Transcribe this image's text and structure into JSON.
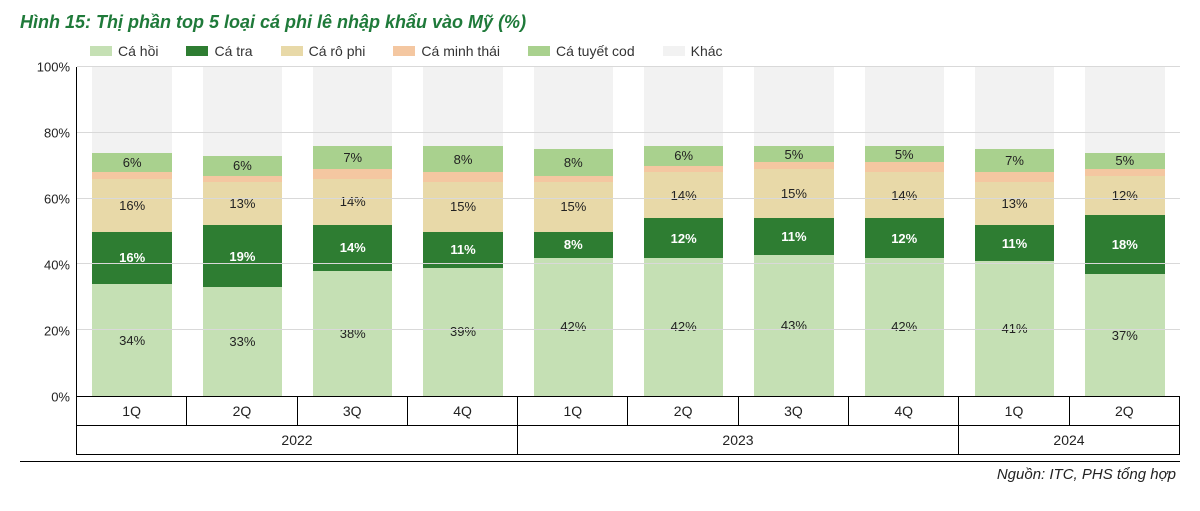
{
  "title": "Hình 15: Thị phần top 5 loại cá phi lê nhập khẩu vào Mỹ (%)",
  "source": "Nguồn: ITC, PHS tổng hợp",
  "chart": {
    "type": "stacked-bar",
    "ylim": [
      0,
      100
    ],
    "ytick_step": 20,
    "y_suffix": "%",
    "grid_color": "#d9d9d9",
    "background_color": "#ffffff",
    "series": [
      {
        "key": "ca_hoi",
        "label": "Cá hồi",
        "color": "#c5e0b4"
      },
      {
        "key": "ca_tra",
        "label": "Cá tra",
        "color": "#2e7d32"
      },
      {
        "key": "ca_ro_phi",
        "label": "Cá rô phi",
        "color": "#e8d9a8"
      },
      {
        "key": "ca_minh_thai",
        "label": "Cá minh thái",
        "color": "#f4c7a1"
      },
      {
        "key": "ca_tuyet_cod",
        "label": "Cá tuyết cod",
        "color": "#a9d18e"
      },
      {
        "key": "khac",
        "label": "Khác",
        "color": "#f2f2f2"
      }
    ],
    "year_groups": [
      {
        "label": "2022",
        "count": 4
      },
      {
        "label": "2023",
        "count": 4
      },
      {
        "label": "2024",
        "count": 2
      }
    ],
    "quarters": [
      "1Q",
      "2Q",
      "3Q",
      "4Q",
      "1Q",
      "2Q",
      "3Q",
      "4Q",
      "1Q",
      "2Q"
    ],
    "data": [
      {
        "ca_hoi": 34,
        "ca_tra": 16,
        "ca_ro_phi": 16,
        "ca_minh_thai": 2,
        "ca_tuyet_cod": 6,
        "khac": 26
      },
      {
        "ca_hoi": 33,
        "ca_tra": 19,
        "ca_ro_phi": 13,
        "ca_minh_thai": 2,
        "ca_tuyet_cod": 6,
        "khac": 27
      },
      {
        "ca_hoi": 38,
        "ca_tra": 14,
        "ca_ro_phi": 14,
        "ca_minh_thai": 3,
        "ca_tuyet_cod": 7,
        "khac": 24
      },
      {
        "ca_hoi": 39,
        "ca_tra": 11,
        "ca_ro_phi": 15,
        "ca_minh_thai": 3,
        "ca_tuyet_cod": 8,
        "khac": 24
      },
      {
        "ca_hoi": 42,
        "ca_tra": 8,
        "ca_ro_phi": 15,
        "ca_minh_thai": 2,
        "ca_tuyet_cod": 8,
        "khac": 25
      },
      {
        "ca_hoi": 42,
        "ca_tra": 12,
        "ca_ro_phi": 14,
        "ca_minh_thai": 2,
        "ca_tuyet_cod": 6,
        "khac": 24
      },
      {
        "ca_hoi": 43,
        "ca_tra": 11,
        "ca_ro_phi": 15,
        "ca_minh_thai": 2,
        "ca_tuyet_cod": 5,
        "khac": 24
      },
      {
        "ca_hoi": 42,
        "ca_tra": 12,
        "ca_ro_phi": 14,
        "ca_minh_thai": 3,
        "ca_tuyet_cod": 5,
        "khac": 24
      },
      {
        "ca_hoi": 41,
        "ca_tra": 11,
        "ca_ro_phi": 13,
        "ca_minh_thai": 3,
        "ca_tuyet_cod": 7,
        "khac": 25
      },
      {
        "ca_hoi": 37,
        "ca_tra": 18,
        "ca_ro_phi": 12,
        "ca_minh_thai": 2,
        "ca_tuyet_cod": 5,
        "khac": 26
      }
    ],
    "label_visibility": {
      "ca_hoi": true,
      "ca_tra": true,
      "ca_ro_phi": true,
      "ca_minh_thai": false,
      "ca_tuyet_cod": true,
      "khac": false
    },
    "bold_series": "ca_tra",
    "title_fontsize": 18,
    "label_fontsize": 13,
    "axis_fontsize": 14
  }
}
